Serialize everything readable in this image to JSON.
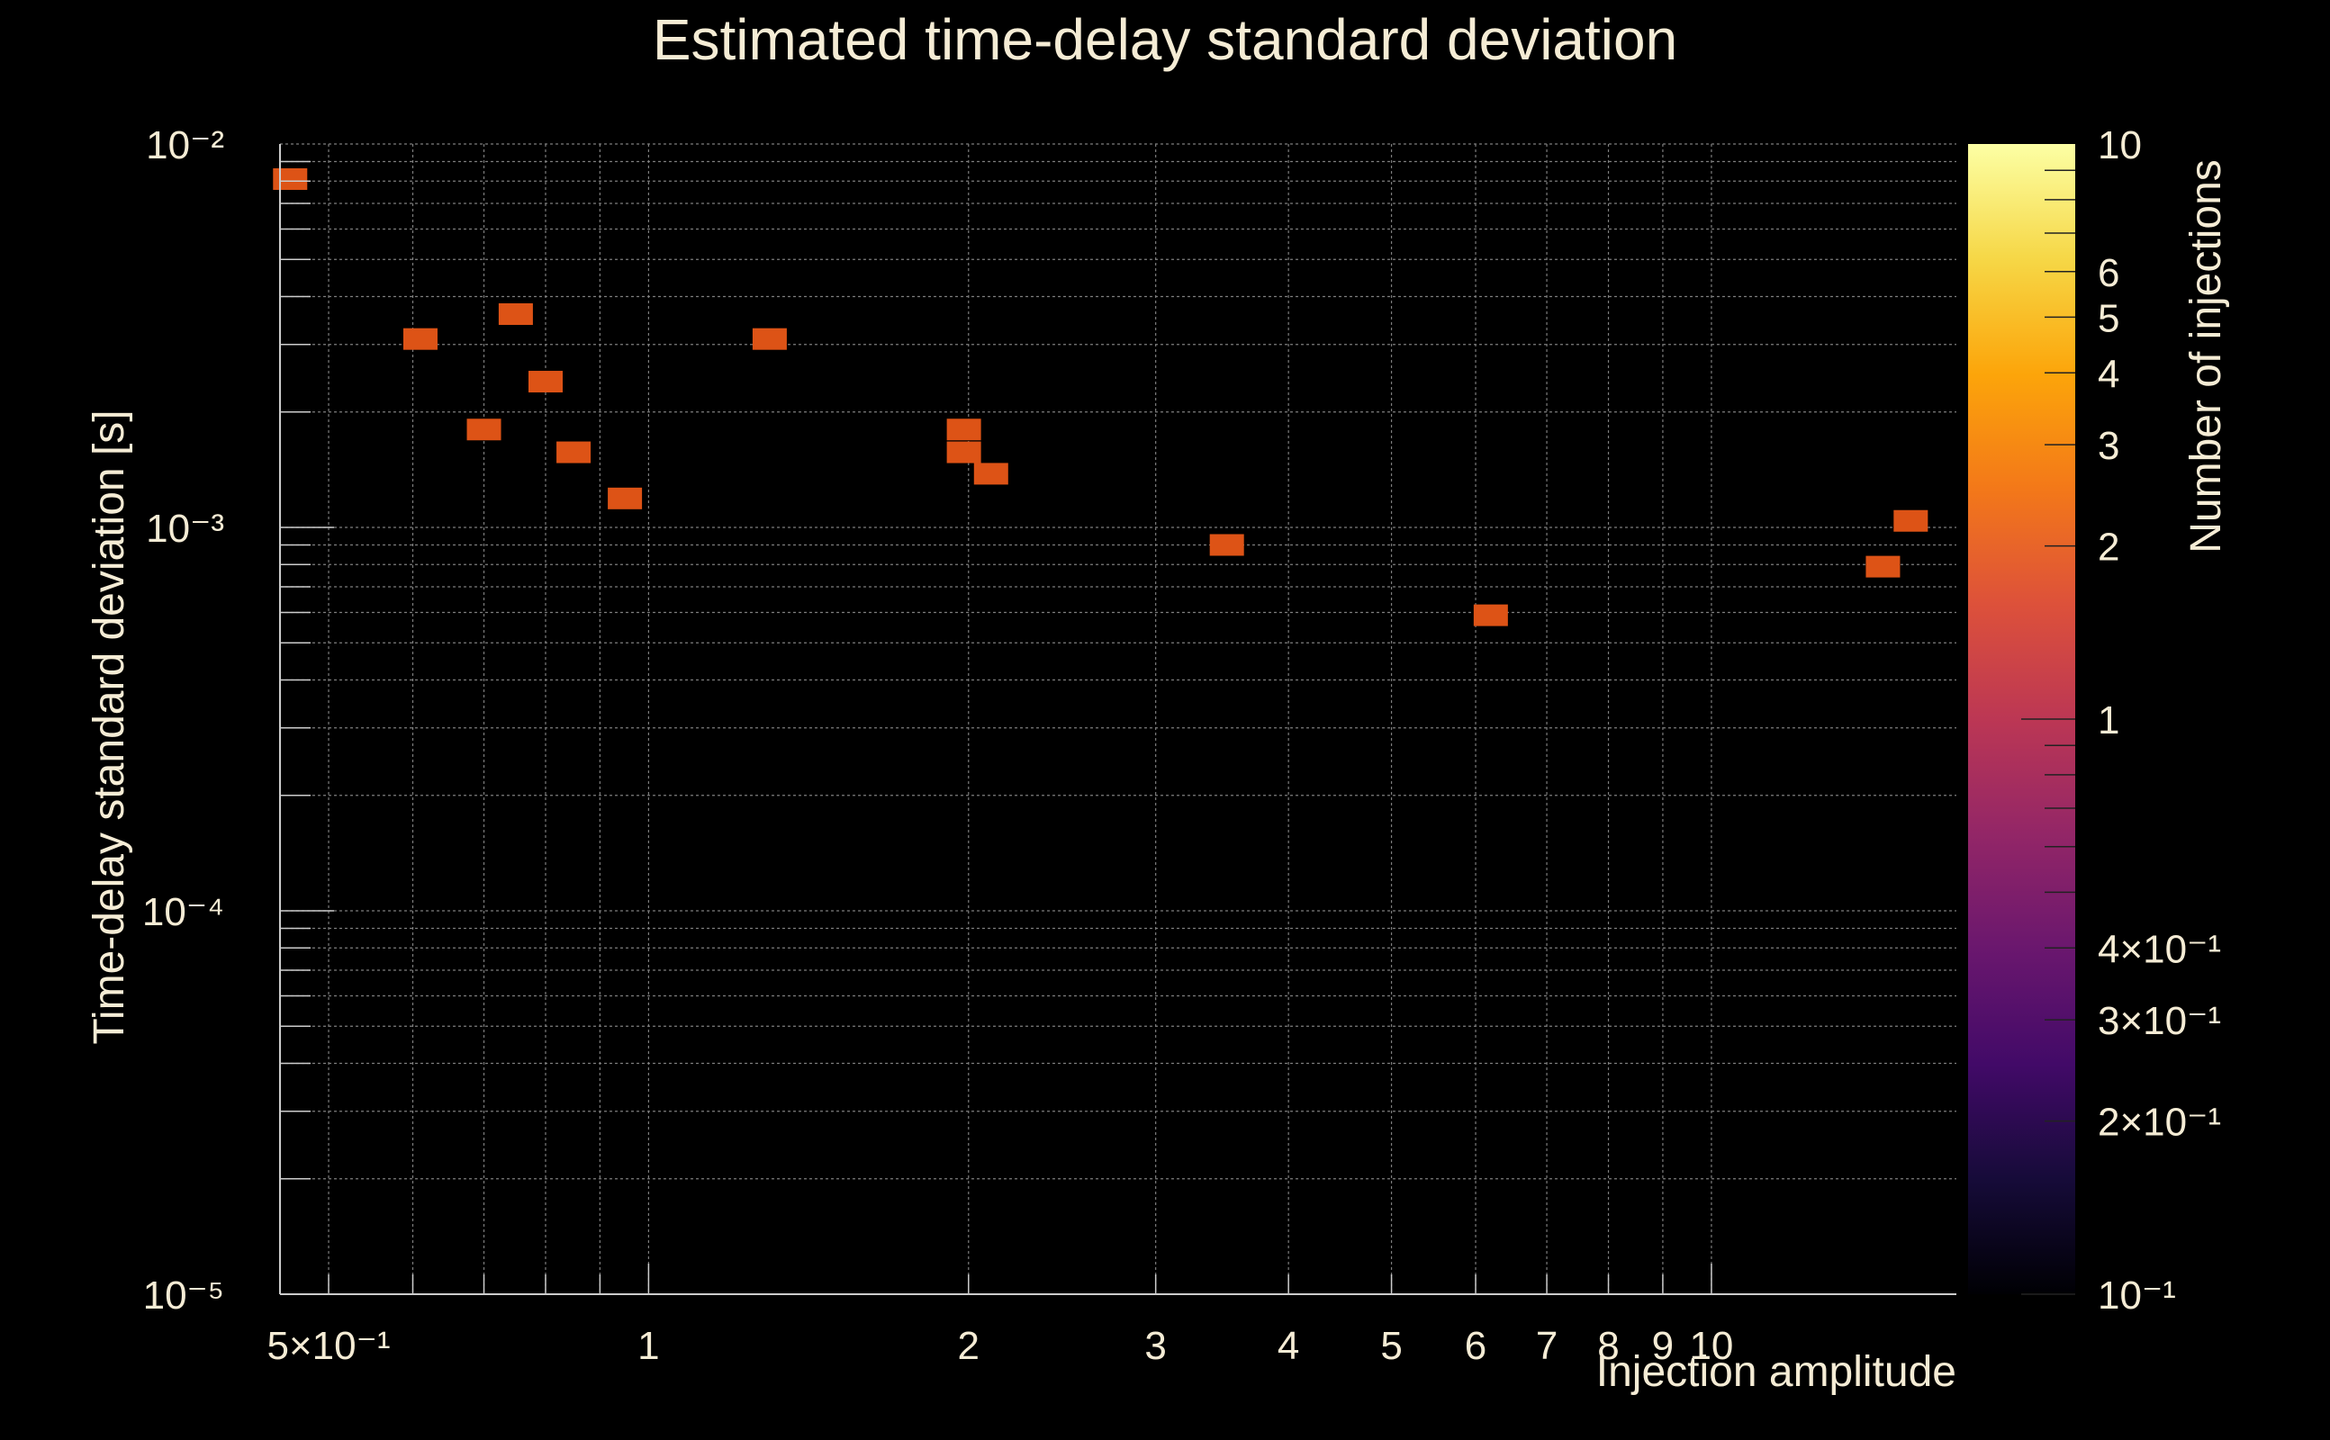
{
  "chart_data": {
    "type": "heatmap",
    "title": "Estimated time-delay standard deviation",
    "xlabel": "Injection amplitude",
    "ylabel": "Time-delay standard deviation [s]",
    "colorbar_label": "Number of injections",
    "x_scale": "log",
    "y_scale": "log",
    "colorbar_scale": "log",
    "xlim": [
      0.45,
      17
    ],
    "ylim": [
      1e-05,
      0.01
    ],
    "clim": [
      0.1,
      10
    ],
    "grid": true,
    "colormap": "inferno",
    "background": "#000000",
    "text_color": "#f5ecd5",
    "cell_color": "#dd5316",
    "x_ticks": [
      {
        "value": 0.5,
        "label": "5×10⁻¹"
      },
      {
        "value": 1,
        "label": "1"
      },
      {
        "value": 2,
        "label": "2"
      },
      {
        "value": 3,
        "label": "3"
      },
      {
        "value": 4,
        "label": "4"
      },
      {
        "value": 5,
        "label": "5"
      },
      {
        "value": 6,
        "label": "6"
      },
      {
        "value": 7,
        "label": "7"
      },
      {
        "value": 8,
        "label": "8"
      },
      {
        "value": 9,
        "label": "9"
      },
      {
        "value": 10,
        "label": "10"
      }
    ],
    "y_ticks": [
      {
        "value": 1e-05,
        "label": "10⁻⁵"
      },
      {
        "value": 0.0001,
        "label": "10⁻⁴"
      },
      {
        "value": 0.001,
        "label": "10⁻³"
      },
      {
        "value": 0.01,
        "label": "10⁻²"
      }
    ],
    "colorbar_ticks": [
      {
        "value": 0.1,
        "label": "10⁻¹"
      },
      {
        "value": 0.2,
        "label": "2×10⁻¹"
      },
      {
        "value": 0.3,
        "label": "3×10⁻¹"
      },
      {
        "value": 0.4,
        "label": "4×10⁻¹"
      },
      {
        "value": 1,
        "label": "1"
      },
      {
        "value": 2,
        "label": "2"
      },
      {
        "value": 3,
        "label": "3"
      },
      {
        "value": 4,
        "label": "4"
      },
      {
        "value": 5,
        "label": "5"
      },
      {
        "value": 6,
        "label": "6"
      },
      {
        "value": 10,
        "label": "10"
      }
    ],
    "points": [
      {
        "x": 0.46,
        "y": 0.0081,
        "count": 1
      },
      {
        "x": 0.61,
        "y": 0.0031,
        "count": 1
      },
      {
        "x": 0.7,
        "y": 0.0018,
        "count": 1
      },
      {
        "x": 0.75,
        "y": 0.0036,
        "count": 1
      },
      {
        "x": 0.8,
        "y": 0.0024,
        "count": 1
      },
      {
        "x": 0.85,
        "y": 0.00157,
        "count": 1
      },
      {
        "x": 0.95,
        "y": 0.00119,
        "count": 1
      },
      {
        "x": 1.3,
        "y": 0.0031,
        "count": 1
      },
      {
        "x": 1.98,
        "y": 0.0018,
        "count": 1
      },
      {
        "x": 1.98,
        "y": 0.00157,
        "count": 1
      },
      {
        "x": 2.1,
        "y": 0.00138,
        "count": 1
      },
      {
        "x": 3.5,
        "y": 0.0009,
        "count": 1
      },
      {
        "x": 6.2,
        "y": 0.00059,
        "count": 1
      },
      {
        "x": 14.5,
        "y": 0.00079,
        "count": 1
      },
      {
        "x": 15.4,
        "y": 0.00104,
        "count": 1
      }
    ]
  }
}
